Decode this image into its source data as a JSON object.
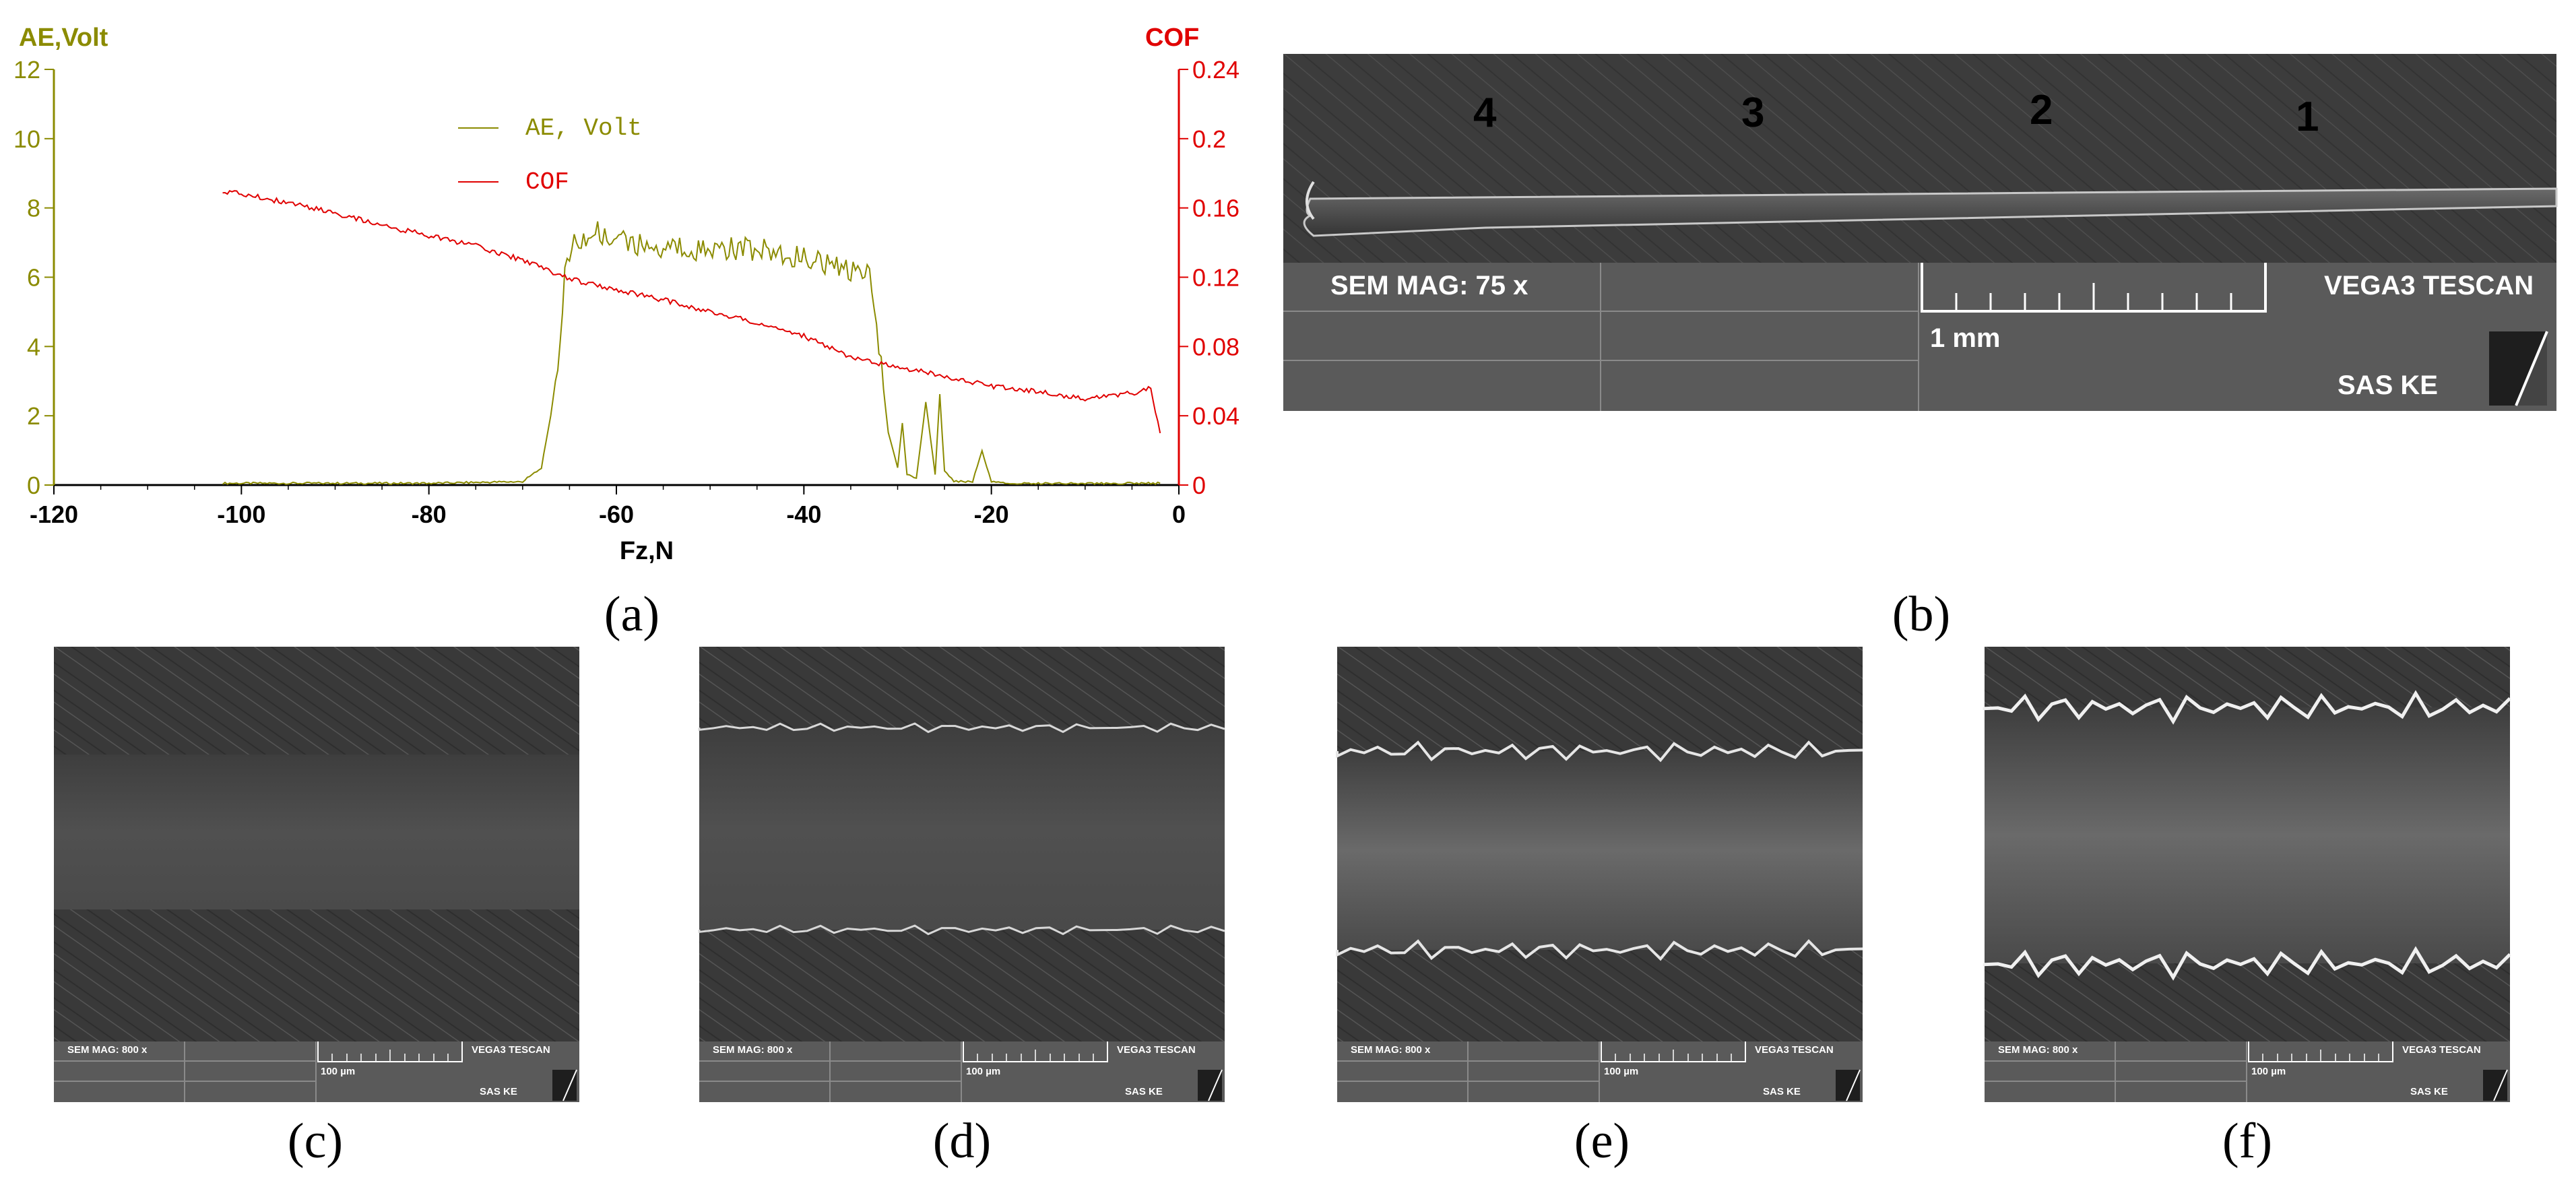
{
  "figure": {
    "panels": {
      "a": {
        "caption": "(a)"
      },
      "b": {
        "caption": "(b)",
        "track_labels": [
          "4",
          "3",
          "2",
          "1"
        ],
        "info": {
          "mag": "SEM MAG: 75 x",
          "scale": "1 mm",
          "brand": "VEGA3 TESCAN",
          "lab": "SAS KE"
        }
      },
      "c": {
        "caption": "(c)",
        "info": {
          "mag": "SEM MAG: 800 x",
          "scale": "100 µm",
          "brand": "VEGA3 TESCAN",
          "lab": "SAS KE"
        }
      },
      "d": {
        "caption": "(d)",
        "info": {
          "mag": "SEM MAG: 800 x",
          "scale": "100 µm",
          "brand": "VEGA3 TESCAN",
          "lab": "SAS KE"
        }
      },
      "e": {
        "caption": "(e)",
        "info": {
          "mag": "SEM MAG: 800 x",
          "scale": "100 µm",
          "brand": "VEGA3 TESCAN",
          "lab": "SAS KE"
        }
      },
      "f": {
        "caption": "(f)",
        "info": {
          "mag": "SEM MAG: 800 x",
          "scale": "100 µm",
          "brand": "VEGA3 TESCAN",
          "lab": "SAS KE"
        }
      }
    }
  },
  "chart_data": {
    "type": "line",
    "title": "",
    "xlabel": "Fz,N",
    "ylabel": "AE,Volt",
    "y2label": "COF",
    "xlim": [
      -120,
      0
    ],
    "ylim": [
      0,
      12
    ],
    "y2lim": [
      0,
      0.24
    ],
    "xticks": [
      "-120",
      "-100",
      "-80",
      "-60",
      "-40",
      "-20",
      "0"
    ],
    "yticks": [
      "0",
      "2",
      "4",
      "6",
      "8",
      "10",
      "12"
    ],
    "y2ticks": [
      "0",
      "0.04",
      "0.08",
      "0.12",
      "0.16",
      "0.2",
      "0.24"
    ],
    "colors": {
      "ae": "#8b8b00",
      "cof": "#e00000"
    },
    "legend_position": "top-center",
    "series": [
      {
        "name": "AE, Volt",
        "axis": "left",
        "x": [
          -102,
          -90,
          -80,
          -70,
          -68,
          -67,
          -66,
          -65.5,
          -65,
          -64,
          -62,
          -60,
          -58,
          -55,
          -50,
          -45,
          -40,
          -36,
          -33,
          -32,
          -31,
          -30,
          -29.5,
          -29,
          -28,
          -27,
          -26,
          -25.5,
          -25,
          -24,
          -22,
          -21,
          -20,
          -18,
          -10,
          -2
        ],
        "values": [
          0.05,
          0.05,
          0.05,
          0.1,
          0.5,
          2.0,
          4.0,
          6.0,
          6.8,
          7.0,
          7.3,
          7.1,
          6.9,
          6.9,
          6.8,
          6.8,
          6.6,
          6.2,
          6.0,
          4.0,
          1.5,
          0.5,
          1.8,
          0.3,
          0.2,
          2.4,
          0.3,
          2.6,
          0.4,
          0.1,
          0.1,
          1.0,
          0.1,
          0.05,
          0.05,
          0.05
        ]
      },
      {
        "name": "COF",
        "axis": "right",
        "x": [
          -102,
          -95,
          -90,
          -85,
          -80,
          -75,
          -70,
          -65,
          -60,
          -55,
          -50,
          -45,
          -40,
          -35,
          -30,
          -25,
          -20,
          -15,
          -10,
          -5,
          -3,
          -2
        ],
        "values": [
          0.17,
          0.163,
          0.157,
          0.15,
          0.144,
          0.138,
          0.13,
          0.119,
          0.113,
          0.107,
          0.1,
          0.094,
          0.086,
          0.074,
          0.068,
          0.063,
          0.057,
          0.054,
          0.05,
          0.053,
          0.056,
          0.03
        ]
      }
    ]
  }
}
